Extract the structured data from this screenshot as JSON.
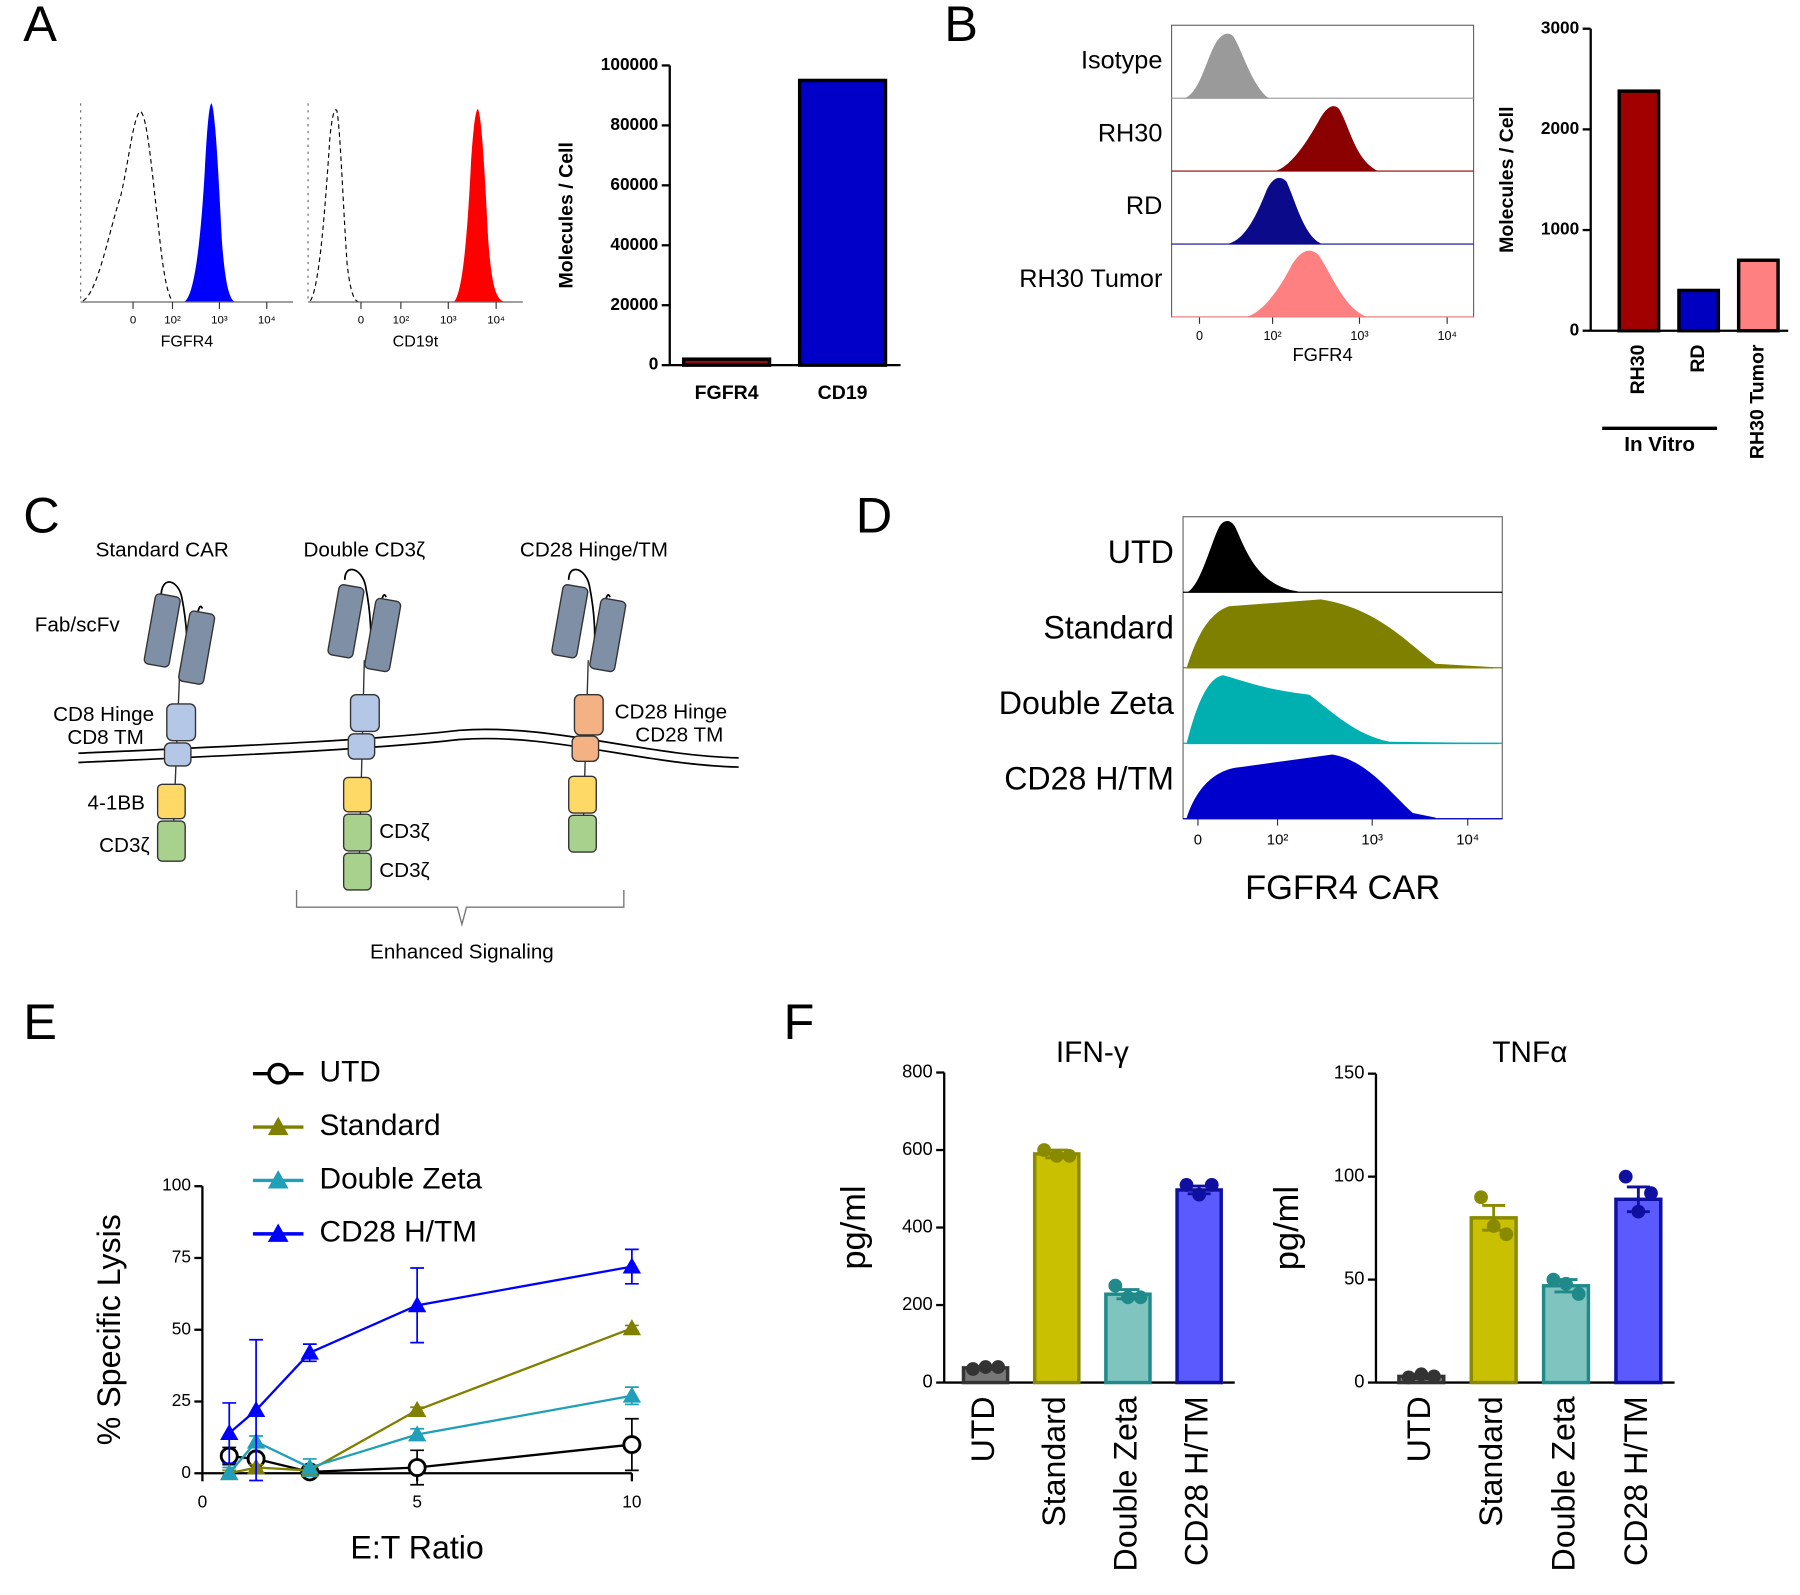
{
  "panels": [
    "A",
    "B",
    "C",
    "D",
    "E",
    "F"
  ],
  "diagram": {
    "titles": [
      "Standard CAR",
      "Double CD3ζ",
      "CD28 Hinge/TM"
    ],
    "fab": "Fab/scFv",
    "cd8_hinge": "CD8 Hinge",
    "cd8_tm": "CD8 TM",
    "cd28_hinge": "CD28 Hinge",
    "cd28_tm": "CD28 TM",
    "bb": "4-1BB",
    "cd3z": [
      "CD3ζ",
      "CD3ζ",
      "CD3ζ"
    ],
    "bracket": "Enhanced Signaling"
  },
  "chart_data": [
    {
      "type": "density",
      "xlabel": "FGFR4",
      "xscale": "biexponential",
      "xlim": [
        -190,
        36000
      ],
      "xticks": [
        0,
        {
          "value": 100,
          "label": "10²"
        },
        {
          "value": 1000,
          "label": "10³"
        },
        {
          "value": 10000,
          "label": "10⁴"
        }
      ]
    },
    {
      "type": "density",
      "xlabel": "CD19t",
      "xscale": "biexponential",
      "xlim": [
        -190,
        36000
      ],
      "xticks": [
        0,
        {
          "value": 100,
          "label": "10²"
        },
        {
          "value": 1000,
          "label": "10³"
        },
        {
          "value": 10000,
          "label": "10⁴"
        }
      ]
    },
    {
      "type": "bar",
      "ylabel": "Molecules / Cell",
      "categories": [
        "FGFR4",
        "CD19"
      ],
      "values": [
        2000,
        95000
      ],
      "colors": [
        "#8b1010",
        "#0000c8"
      ],
      "ylim": [
        0,
        100000
      ],
      "yticks": [
        0,
        20000,
        40000,
        60000,
        80000,
        100000
      ]
    },
    {
      "type": "density",
      "xlabel": "FGFR4",
      "xscale": "biexponential",
      "xlim": [
        -24,
        20000
      ],
      "xticks": [
        0,
        {
          "value": 100,
          "label": "10²"
        },
        {
          "value": 1000,
          "label": "10³"
        },
        {
          "value": 10000,
          "label": "10⁴"
        }
      ],
      "series": [
        {
          "name": "Isotype",
          "color": "#9a9a9a"
        },
        {
          "name": "RH30",
          "color": "#8b0000"
        },
        {
          "name": "RD",
          "color": "#0a0a8b"
        },
        {
          "name": "RH30 Tumor",
          "color": "#ff8080"
        }
      ]
    },
    {
      "type": "bar",
      "ylabel": "Molecules / Cell",
      "categories": [
        "RH30",
        "RD",
        "RH30 Tumor"
      ],
      "values": [
        2380,
        400,
        700
      ],
      "colors": [
        "#a00000",
        "#0000c0",
        "#ff8080"
      ],
      "ylim": [
        0,
        3000
      ],
      "yticks": [
        0,
        1000,
        2000,
        3000
      ],
      "group_label": "In  Vitro"
    },
    {
      "type": "density",
      "xlabel": "FGFR4 CAR",
      "xscale": "biexponential",
      "xlim": [
        -11,
        23000
      ],
      "xticks": [
        0,
        {
          "value": 100,
          "label": "10²"
        },
        {
          "value": 1000,
          "label": "10³"
        },
        {
          "value": 10000,
          "label": "10⁴"
        }
      ],
      "series": [
        {
          "name": "UTD",
          "color": "#000000"
        },
        {
          "name": "Standard",
          "color": "#808000"
        },
        {
          "name": "Double Zeta",
          "color": "#00b0b0"
        },
        {
          "name": "CD28 H/TM",
          "color": "#0000cc"
        }
      ]
    },
    {
      "type": "line",
      "xlabel": "E:T Ratio",
      "ylabel": "% Specific Lysis",
      "x": [
        0.625,
        1.25,
        2.5,
        5,
        10
      ],
      "xlim": [
        0,
        10
      ],
      "xticks": [
        0,
        5,
        10
      ],
      "ylim": [
        0,
        100
      ],
      "yticks": [
        0,
        25,
        50,
        75,
        100
      ],
      "series": [
        {
          "name": "UTD",
          "color": "#000000",
          "marker": "circle-open",
          "values": [
            6,
            5,
            0.5,
            2,
            10
          ],
          "errors": [
            3,
            2,
            1,
            6,
            9
          ]
        },
        {
          "name": "Standard",
          "color": "#808000",
          "marker": "triangle",
          "values": [
            0,
            2,
            1,
            22,
            50.5
          ],
          "errors": [
            1,
            1,
            1,
            1,
            1
          ]
        },
        {
          "name": "Double Zeta",
          "color": "#20a0b8",
          "marker": "triangle",
          "values": [
            0,
            11,
            2,
            13.5,
            27
          ],
          "errors": [
            2,
            2,
            3,
            2,
            3
          ]
        },
        {
          "name": "CD28 H/TM",
          "color": "#0000ff",
          "marker": "triangle",
          "values": [
            14,
            22,
            42,
            58.5,
            72
          ],
          "errors": [
            10.5,
            24.5,
            3,
            13,
            6
          ]
        }
      ]
    },
    {
      "type": "bar",
      "title": "IFN-γ",
      "ylabel": "pg/ml",
      "categories": [
        "UTD",
        "Standard",
        "Double Zeta",
        "CD28 H/TM"
      ],
      "values": [
        38,
        590,
        228,
        497
      ],
      "errors": [
        3,
        10,
        12,
        10
      ],
      "points": [
        [
          35,
          40,
          40
        ],
        [
          600,
          585,
          585
        ],
        [
          250,
          220,
          220
        ],
        [
          510,
          485,
          510
        ]
      ],
      "colors": [
        "#777777",
        "#c8c000",
        "#80c4c0",
        "#5a5aff"
      ],
      "edge_colors": [
        "#333333",
        "#8a8a00",
        "#208a8a",
        "#1010a0"
      ],
      "ylim": [
        0,
        800
      ],
      "yticks": [
        0,
        200,
        400,
        600,
        800
      ]
    },
    {
      "type": "bar",
      "title": "TNFα",
      "ylabel": "pg/ml",
      "categories": [
        "UTD",
        "Standard",
        "Double Zeta",
        "CD28 H/TM"
      ],
      "values": [
        3,
        80,
        47,
        89
      ],
      "errors": [
        1,
        6,
        3,
        6
      ],
      "points": [
        [
          2.5,
          4,
          3
        ],
        [
          90,
          76,
          72
        ],
        [
          50,
          48,
          43
        ],
        [
          100,
          83,
          92
        ]
      ],
      "colors": [
        "#777777",
        "#c8c000",
        "#80c4c0",
        "#5a5aff"
      ],
      "edge_colors": [
        "#333333",
        "#8a8a00",
        "#208a8a",
        "#1010a0"
      ],
      "ylim": [
        0,
        150
      ],
      "yticks": [
        0,
        50,
        100,
        150
      ]
    }
  ]
}
